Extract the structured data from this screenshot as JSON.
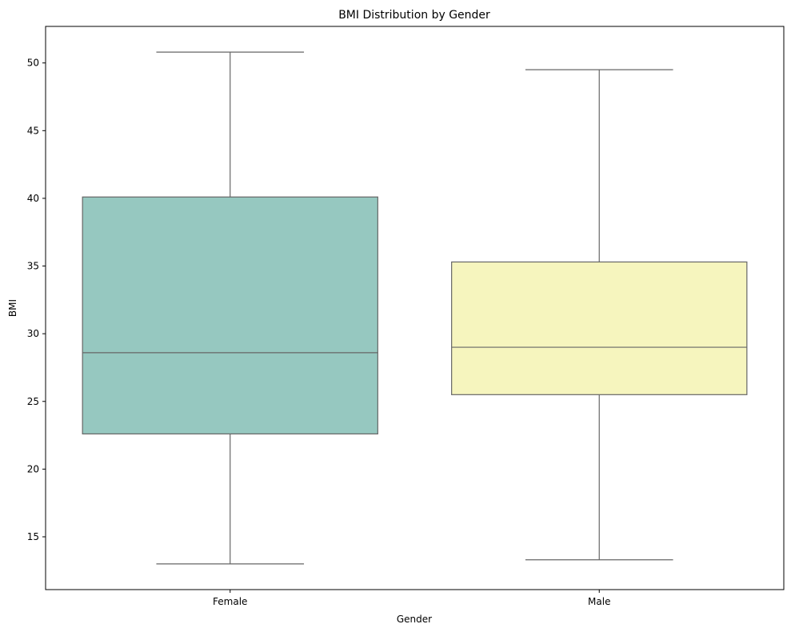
{
  "chart_data": {
    "type": "box",
    "title": "BMI Distribution by Gender",
    "xlabel": "Gender",
    "ylabel": "BMI",
    "ylim": [
      11.1,
      52.7
    ],
    "yticks": [
      15,
      20,
      25,
      30,
      35,
      40,
      45,
      50
    ],
    "categories": [
      "Female",
      "Male"
    ],
    "boxes": [
      {
        "category": "Female",
        "whisker_low": 13.0,
        "q1": 22.6,
        "median": 28.6,
        "q3": 40.1,
        "whisker_high": 50.8,
        "color": "#96c8c0"
      },
      {
        "category": "Male",
        "whisker_low": 13.3,
        "q1": 25.5,
        "median": 29.0,
        "q3": 35.3,
        "whisker_high": 49.5,
        "color": "#f6f5be"
      }
    ],
    "line_color": "#666666",
    "grid": false,
    "legend": "none"
  }
}
